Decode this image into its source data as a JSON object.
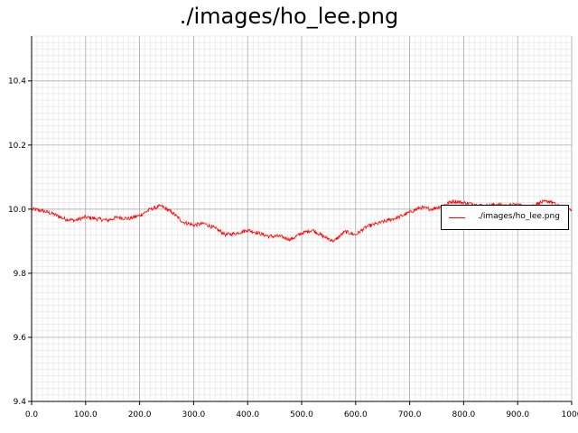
{
  "chart_data": {
    "type": "line",
    "title": "./images/ho_lee.png",
    "xlabel": "",
    "ylabel": "",
    "xlim": [
      0,
      1000
    ],
    "ylim": [
      9.4,
      10.54
    ],
    "x_ticks": [
      0,
      100,
      200,
      300,
      400,
      500,
      600,
      700,
      800,
      900,
      1000
    ],
    "x_tick_labels": [
      "0.0",
      "100.0",
      "200.0",
      "300.0",
      "400.0",
      "500.0",
      "600.0",
      "700.0",
      "800.0",
      "900.0",
      "1000"
    ],
    "y_ticks": [
      9.4,
      9.6,
      9.8,
      10.0,
      10.2,
      10.4
    ],
    "y_tick_labels": [
      "9.4",
      "9.6",
      "9.8",
      "10.0",
      "10.2",
      "10.4"
    ],
    "grid": true,
    "legend": "top-right",
    "series": [
      {
        "name": "./images/ho_lee.png",
        "color": "#ff0000",
        "x": [
          0,
          20,
          40,
          60,
          80,
          100,
          120,
          140,
          160,
          180,
          200,
          220,
          240,
          260,
          280,
          300,
          320,
          340,
          360,
          380,
          400,
          420,
          440,
          460,
          480,
          500,
          520,
          540,
          560,
          580,
          600,
          620,
          640,
          660,
          680,
          700,
          720,
          740,
          760,
          780,
          800,
          820,
          840,
          860,
          880,
          900,
          920,
          940,
          960,
          980,
          1000
        ],
        "y": [
          10.0,
          9.995,
          9.985,
          9.97,
          9.965,
          9.975,
          9.97,
          9.965,
          9.975,
          9.97,
          9.98,
          10.0,
          10.01,
          9.99,
          9.96,
          9.95,
          9.955,
          9.94,
          9.92,
          9.925,
          9.935,
          9.925,
          9.915,
          9.915,
          9.905,
          9.925,
          9.935,
          9.915,
          9.9,
          9.93,
          9.92,
          9.945,
          9.955,
          9.965,
          9.975,
          9.99,
          10.005,
          10.0,
          10.01,
          10.025,
          10.02,
          10.015,
          10.01,
          10.015,
          10.01,
          10.015,
          10.005,
          10.02,
          10.025,
          10.005,
          10.0
        ]
      }
    ]
  }
}
